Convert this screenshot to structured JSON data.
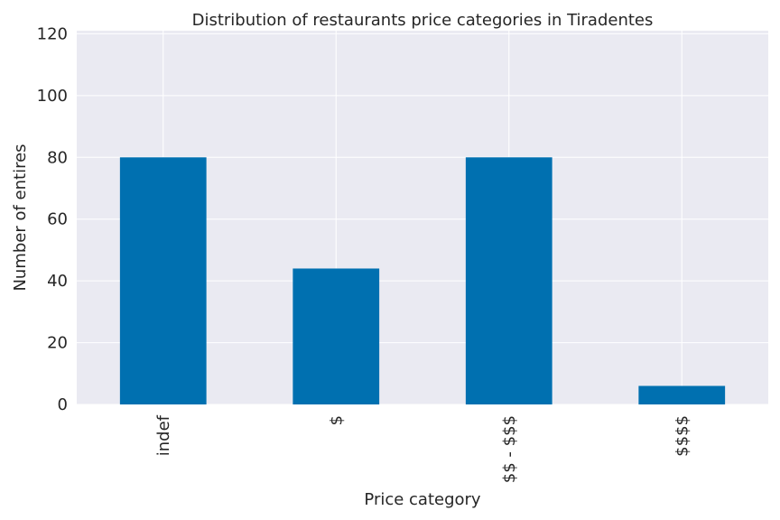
{
  "chart_data": {
    "type": "bar",
    "title": "Distribution of restaurants price categories in Tiradentes",
    "xlabel": "Price category",
    "ylabel": "Number of entires",
    "categories": [
      "indef",
      "$",
      "$$ - $$$",
      "$$$$"
    ],
    "values": [
      80,
      44,
      80,
      6
    ],
    "ylim": [
      0,
      121
    ],
    "yticks": [
      0,
      20,
      40,
      60,
      80,
      100,
      120
    ],
    "grid": true,
    "legend": "none",
    "colors": {
      "bar": "#0070b0",
      "plot_background": "#eaeaf2",
      "grid": "#ffffff",
      "text": "#262626"
    }
  }
}
